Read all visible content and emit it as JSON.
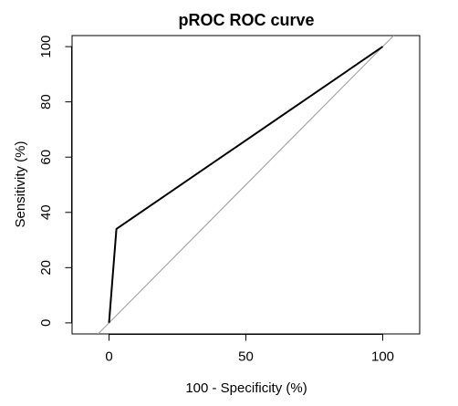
{
  "chart_data": {
    "type": "line",
    "title": "pROC ROC curve",
    "xlabel": "100 - Specificity (%)",
    "ylabel": "Sensitivity (%)",
    "xlim": [
      -13.5,
      113.5
    ],
    "ylim": [
      -4,
      104
    ],
    "xticks": [
      0,
      50,
      100
    ],
    "yticks": [
      0,
      20,
      40,
      60,
      80,
      100
    ],
    "grid": false,
    "legend": "none",
    "series": [
      {
        "x": [
          0,
          2.7,
          100
        ],
        "y": [
          0,
          34,
          100
        ],
        "color": "#000000"
      }
    ],
    "reference_line": {
      "x": [
        0,
        100
      ],
      "y": [
        0,
        100
      ],
      "color": "#999999"
    }
  }
}
